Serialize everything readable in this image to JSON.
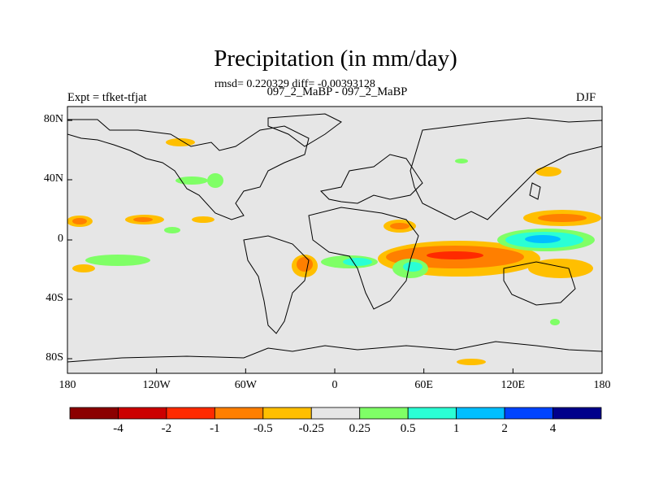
{
  "title": "Precipitation (in mm/day)",
  "stats_line": "rmsd= 0.220329 diff= -0.00393128",
  "case_line": "097_2_MaBP - 097_2_MaBP",
  "expt_label": "Expt = tfket-tfjat",
  "season_label": "DJF",
  "map": {
    "x_axis_labels": [
      "180",
      "120W",
      "60W",
      "0",
      "60E",
      "120E",
      "180"
    ],
    "y_axis_labels": [
      "80N",
      "40N",
      "0",
      "40S",
      "80S"
    ],
    "background_color": "#e6e6e6",
    "coastline_color": "#000000"
  },
  "colorbar": {
    "labels": [
      "-4",
      "-2",
      "-1",
      "-0.5",
      "-0.25",
      "0.25",
      "0.5",
      "1",
      "2",
      "4"
    ],
    "colors": [
      "#8b0000",
      "#cc0000",
      "#ff2a00",
      "#ff7f00",
      "#ffbf00",
      "#e6e6e6",
      "#7fff66",
      "#2affd5",
      "#00bfff",
      "#0044ff",
      "#00008b"
    ]
  }
}
